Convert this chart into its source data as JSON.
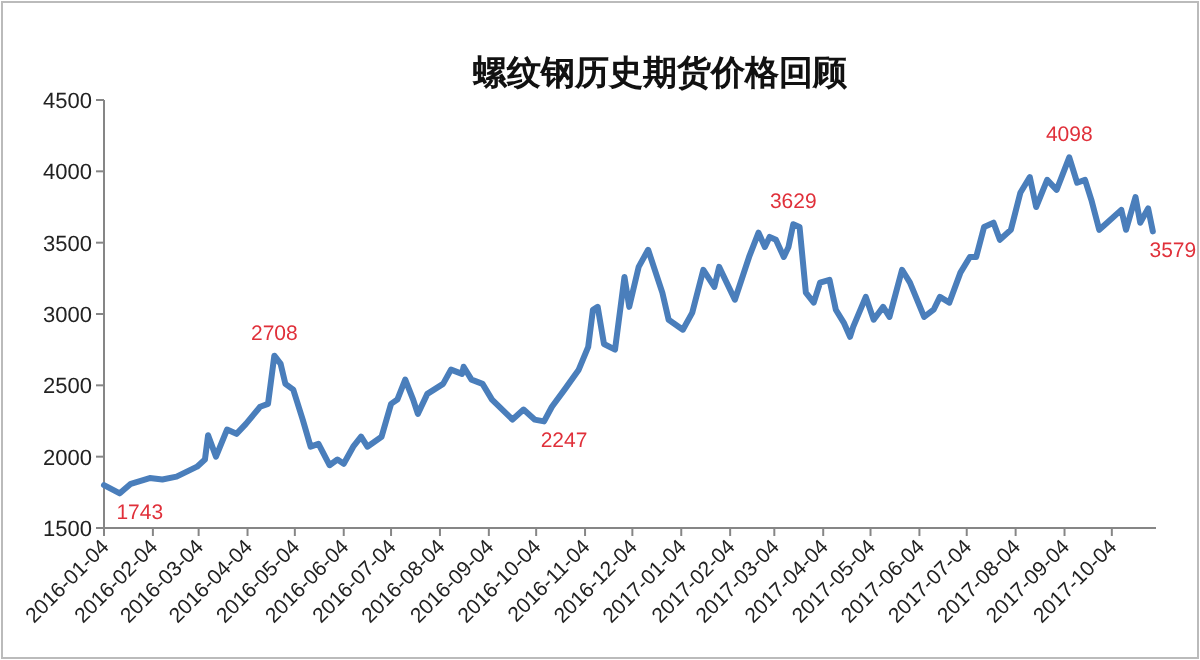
{
  "chart_data": {
    "type": "line",
    "title": "螺纹钢历史期货价格回顾",
    "x": [
      "2016-01-04",
      "2016-01-14",
      "2016-01-21",
      "2016-02-02",
      "2016-02-10",
      "2016-02-19",
      "2016-03-03",
      "2016-03-08",
      "2016-03-10",
      "2016-03-15",
      "2016-03-22",
      "2016-03-28",
      "2016-04-03",
      "2016-04-12",
      "2016-04-17",
      "2016-04-21",
      "2016-04-25",
      "2016-04-28",
      "2016-05-03",
      "2016-05-09",
      "2016-05-14",
      "2016-05-19",
      "2016-05-26",
      "2016-05-31",
      "2016-06-04",
      "2016-06-10",
      "2016-06-15",
      "2016-06-19",
      "2016-06-28",
      "2016-07-04",
      "2016-07-08",
      "2016-07-13",
      "2016-07-18",
      "2016-07-21",
      "2016-07-27",
      "2016-08-06",
      "2016-08-11",
      "2016-08-18",
      "2016-08-19",
      "2016-08-24",
      "2016-08-31",
      "2016-09-06",
      "2016-09-19",
      "2016-09-26",
      "2016-10-03",
      "2016-10-09",
      "2016-10-14",
      "2016-10-22",
      "2016-10-31",
      "2016-11-06",
      "2016-11-09",
      "2016-11-12",
      "2016-11-16",
      "2016-11-23",
      "2016-11-29",
      "2016-12-02",
      "2016-12-08",
      "2016-12-14",
      "2016-12-23",
      "2016-12-27",
      "2017-01-05",
      "2017-01-11",
      "2017-01-18",
      "2017-01-25",
      "2017-01-28",
      "2017-02-07",
      "2017-02-16",
      "2017-02-22",
      "2017-02-26",
      "2017-03-01",
      "2017-03-05",
      "2017-03-10",
      "2017-03-13",
      "2017-03-16",
      "2017-03-20",
      "2017-03-24",
      "2017-03-29",
      "2017-04-02",
      "2017-04-08",
      "2017-04-12",
      "2017-04-17",
      "2017-04-21",
      "2017-04-23",
      "2017-05-01",
      "2017-05-06",
      "2017-05-12",
      "2017-05-16",
      "2017-05-24",
      "2017-05-29",
      "2017-06-07",
      "2017-06-13",
      "2017-06-17",
      "2017-06-23",
      "2017-06-30",
      "2017-07-06",
      "2017-07-10",
      "2017-07-15",
      "2017-07-21",
      "2017-07-25",
      "2017-08-01",
      "2017-08-07",
      "2017-08-13",
      "2017-08-17",
      "2017-08-24",
      "2017-08-30",
      "2017-09-07",
      "2017-09-12",
      "2017-09-17",
      "2017-09-21",
      "2017-09-26",
      "2017-10-01",
      "2017-10-10",
      "2017-10-13",
      "2017-10-19",
      "2017-10-22",
      "2017-10-27",
      "2017-10-30"
    ],
    "series": [
      {
        "color": "#4a7ebb",
        "values": [
          1800,
          1743,
          1810,
          1850,
          1840,
          1860,
          1930,
          1980,
          2150,
          2000,
          2190,
          2160,
          2230,
          2350,
          2370,
          2708,
          2650,
          2510,
          2470,
          2260,
          2070,
          2090,
          1940,
          1980,
          1950,
          2070,
          2140,
          2070,
          2140,
          2370,
          2400,
          2540,
          2400,
          2300,
          2440,
          2510,
          2610,
          2580,
          2630,
          2540,
          2510,
          2400,
          2260,
          2330,
          2260,
          2247,
          2350,
          2470,
          2610,
          2770,
          3030,
          3050,
          2790,
          2750,
          3260,
          3050,
          3330,
          3450,
          3150,
          2960,
          2890,
          3010,
          3310,
          3190,
          3330,
          3100,
          3400,
          3570,
          3470,
          3540,
          3520,
          3400,
          3470,
          3629,
          3610,
          3150,
          3080,
          3220,
          3240,
          3030,
          2940,
          2840,
          2910,
          3120,
          2960,
          3050,
          2980,
          3310,
          3220,
          2980,
          3030,
          3120,
          3080,
          3290,
          3400,
          3400,
          3610,
          3640,
          3520,
          3590,
          3850,
          3960,
          3750,
          3940,
          3870,
          4098,
          3920,
          3940,
          3800,
          3590,
          3640,
          3730,
          3590,
          3820,
          3640,
          3740,
          3579
        ]
      }
    ],
    "xlim": [
      "2016-01-04",
      "2017-11-01"
    ],
    "xticks": [
      "2016-01-04",
      "2016-02-04",
      "2016-03-04",
      "2016-04-04",
      "2016-05-04",
      "2016-06-04",
      "2016-07-04",
      "2016-08-04",
      "2016-09-04",
      "2016-10-04",
      "2016-11-04",
      "2016-12-04",
      "2017-01-04",
      "2017-02-04",
      "2017-03-04",
      "2017-04-04",
      "2017-05-04",
      "2017-06-04",
      "2017-07-04",
      "2017-08-04",
      "2017-09-04",
      "2017-10-04"
    ],
    "ylim": [
      1500,
      4500
    ],
    "yticks": [
      1500,
      2000,
      2500,
      3000,
      3500,
      4000,
      4500
    ],
    "grid": false,
    "marker": "none",
    "line_style": "solid",
    "annotations": [
      {
        "text": "1743",
        "x": "2016-01-14",
        "y": 1743
      },
      {
        "text": "2708",
        "x": "2016-04-21",
        "y": 2708
      },
      {
        "text": "2247",
        "x": "2016-10-09",
        "y": 2247
      },
      {
        "text": "3629",
        "x": "2017-03-16",
        "y": 3629
      },
      {
        "text": "4098",
        "x": "2017-09-07",
        "y": 4098
      },
      {
        "text": "3579",
        "x": "2017-10-30",
        "y": 3579
      }
    ]
  }
}
